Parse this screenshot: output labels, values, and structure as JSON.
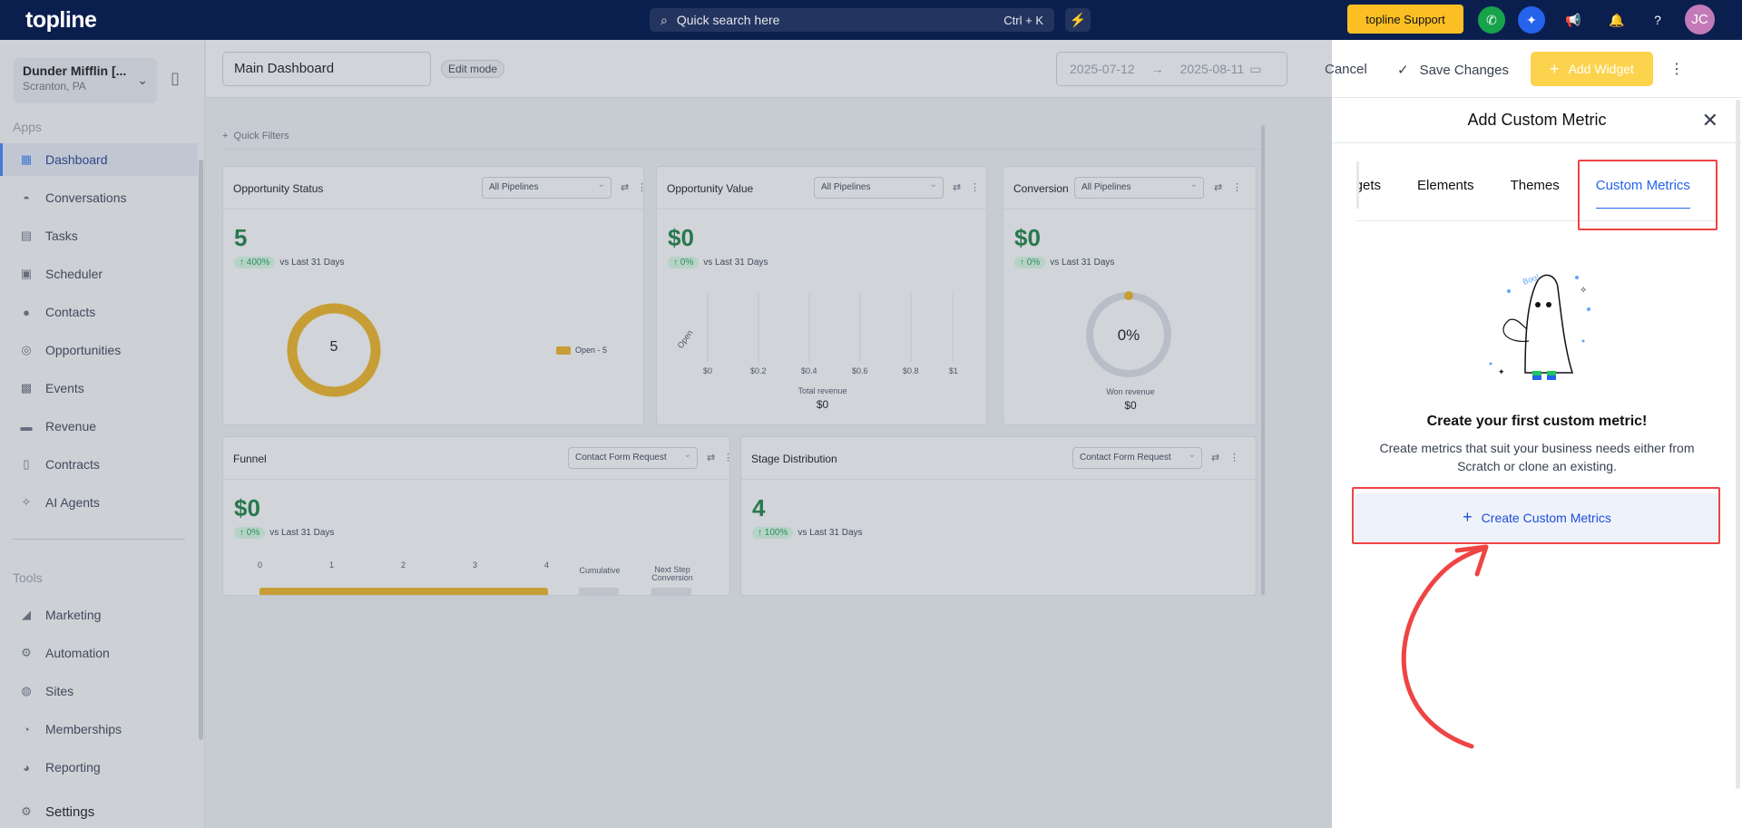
{
  "topbar": {
    "logo": "topline",
    "search_placeholder": "Quick search here",
    "search_shortcut": "Ctrl + K",
    "support_label": "topline Support",
    "avatar_initials": "JC"
  },
  "sidebar": {
    "org_name": "Dunder Mifflin [...",
    "org_location": "Scranton, PA",
    "apps_label": "Apps",
    "apps": [
      {
        "label": "Dashboard",
        "icon": "dashboard-icon",
        "active": true
      },
      {
        "label": "Conversations",
        "icon": "chat-icon"
      },
      {
        "label": "Tasks",
        "icon": "tasks-icon"
      },
      {
        "label": "Scheduler",
        "icon": "calendar-icon"
      },
      {
        "label": "Contacts",
        "icon": "person-icon"
      },
      {
        "label": "Opportunities",
        "icon": "target-icon"
      },
      {
        "label": "Events",
        "icon": "events-icon"
      },
      {
        "label": "Revenue",
        "icon": "card-icon"
      },
      {
        "label": "Contracts",
        "icon": "document-icon"
      },
      {
        "label": "AI Agents",
        "icon": "sparkle-icon"
      }
    ],
    "tools_label": "Tools",
    "tools": [
      {
        "label": "Marketing",
        "icon": "megaphone-icon"
      },
      {
        "label": "Automation",
        "icon": "gears-icon"
      },
      {
        "label": "Sites",
        "icon": "globe-icon"
      },
      {
        "label": "Memberships",
        "icon": "people-icon"
      },
      {
        "label": "Reporting",
        "icon": "pie-icon"
      }
    ],
    "settings_label": "Settings"
  },
  "header": {
    "dashboard_name": "Main Dashboard",
    "edit_mode": "Edit mode",
    "date_start": "2025-07-12",
    "date_end": "2025-08-11",
    "cancel": "Cancel",
    "save_changes": "Save Changes",
    "add_widget": "Add Widget"
  },
  "canvas": {
    "quick_filters": "Quick Filters",
    "widgets": {
      "opportunity_status": {
        "title": "Opportunity Status",
        "filter": "All Pipelines",
        "value": "5",
        "change": "400%",
        "compare": "vs Last 31 Days",
        "donut_value": "5",
        "legend": "Open - 5"
      },
      "opportunity_value": {
        "title": "Opportunity Value",
        "filter": "All Pipelines",
        "value": "$0",
        "change": "0%",
        "compare": "vs Last 31 Days",
        "y_label": "Open",
        "x_ticks": [
          "$0",
          "$0.2",
          "$0.4",
          "$0.6",
          "$0.8",
          "$1"
        ],
        "total_label": "Total revenue",
        "total_value": "$0"
      },
      "conversion": {
        "title": "Conversion",
        "filter": "All Pipelines",
        "value": "$0",
        "change": "0%",
        "compare": "vs Last 31 Days",
        "gauge_value": "0%",
        "won_label": "Won revenue",
        "won_value": "$0"
      },
      "funnel": {
        "title": "Funnel",
        "filter": "Contact Form Request",
        "value": "$0",
        "change": "0%",
        "compare": "vs Last 31 Days",
        "x_ticks": [
          "0",
          "1",
          "2",
          "3",
          "4"
        ],
        "col1": "Cumulative",
        "col2": "Next Step Conversion"
      },
      "stage_distribution": {
        "title": "Stage Distribution",
        "filter": "Contact Form Request",
        "value": "4",
        "change": "100%",
        "compare": "vs Last 31 Days"
      }
    }
  },
  "panel": {
    "title": "Add Custom Metric",
    "tabs": [
      "idgets",
      "Elements",
      "Themes",
      "Custom Metrics"
    ],
    "active_tab": "Custom Metrics",
    "illustration_text": "Boo!",
    "headline": "Create your first custom metric!",
    "subtext": "Create metrics that suit your business needs either from Scratch or clone an existing.",
    "cta": "Create Custom Metrics"
  },
  "colors": {
    "topbar": "#0b1f4f",
    "accent": "#2563eb",
    "highlight": "#ef4444",
    "success": "#15803d",
    "gold": "#f2b51c"
  }
}
